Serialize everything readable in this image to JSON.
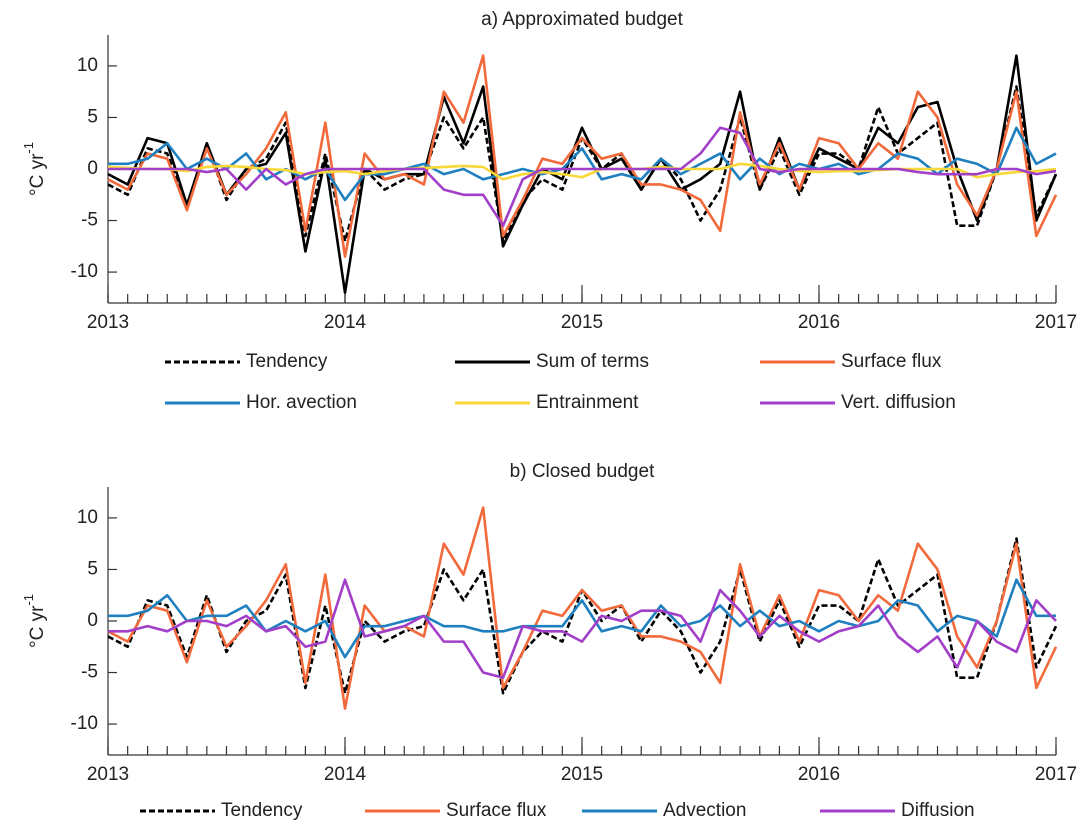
{
  "chart_data": [
    {
      "type": "line",
      "title": "a) Approximated budget",
      "y_label": "°C yr",
      "y_label_superscript": "-1",
      "x": [
        2013,
        2013.083,
        2013.167,
        2013.25,
        2013.333,
        2013.417,
        2013.5,
        2013.583,
        2013.667,
        2013.75,
        2013.833,
        2013.917,
        2014,
        2014.083,
        2014.167,
        2014.25,
        2014.333,
        2014.417,
        2014.5,
        2014.583,
        2014.667,
        2014.75,
        2014.833,
        2014.917,
        2015,
        2015.083,
        2015.167,
        2015.25,
        2015.333,
        2015.417,
        2015.5,
        2015.583,
        2015.667,
        2015.75,
        2015.833,
        2015.917,
        2016,
        2016.083,
        2016.167,
        2016.25,
        2016.333,
        2016.417,
        2016.5,
        2016.583,
        2016.667,
        2016.75,
        2016.833,
        2016.917,
        2017
      ],
      "xlim": [
        2013,
        2017
      ],
      "xticks": [
        2013,
        2014,
        2015,
        2016,
        2017
      ],
      "ylim": [
        -13,
        13
      ],
      "yticks": [
        -10,
        -5,
        0,
        5,
        10
      ],
      "legend": "below",
      "series": [
        {
          "name": "Tendency",
          "color": "#000000",
          "dashed": true,
          "values": [
            -1.5,
            -2.5,
            2,
            1.5,
            -3.5,
            2.5,
            -3,
            0,
            1,
            4.5,
            -6.5,
            1.5,
            -7,
            0,
            -2,
            -1,
            -0.5,
            5,
            2,
            5,
            -7,
            -3,
            -1,
            -2,
            3,
            0,
            1.5,
            -2,
            1,
            -1,
            -5,
            -2,
            5,
            -2,
            2,
            -2.5,
            1.5,
            1.5,
            0,
            6,
            1.5,
            3,
            4.5,
            -5.5,
            -5.5,
            0,
            8,
            -4.5,
            -0.5
          ]
        },
        {
          "name": "Sum of terms",
          "color": "#000000",
          "dashed": false,
          "values": [
            -0.5,
            -1.5,
            3,
            2.5,
            -3.5,
            2.5,
            -2.5,
            0,
            0.5,
            3.5,
            -8,
            1,
            -12,
            0,
            -1,
            -0.5,
            -0.5,
            7,
            2.5,
            8,
            -7.5,
            -3.5,
            0,
            -1,
            4,
            0,
            1,
            -2,
            1,
            -2,
            -1,
            0.5,
            7.5,
            -2,
            3,
            -2,
            2,
            1,
            0,
            4,
            2.5,
            6,
            6.5,
            0,
            -5,
            0,
            11,
            -5,
            -0.5
          ]
        },
        {
          "name": "Surface flux",
          "color": "#f26a3c",
          "dashed": false,
          "values": [
            -1,
            -2,
            1.5,
            1,
            -4,
            2,
            -2.5,
            -0.5,
            2,
            5.5,
            -6,
            4.5,
            -8.5,
            1.5,
            -1,
            -0.5,
            -1.5,
            7.5,
            4.5,
            11,
            -6.5,
            -3,
            1,
            0.5,
            3,
            1,
            1.5,
            -1.5,
            -1.5,
            -2,
            -3,
            -6,
            5.5,
            -1.5,
            2.5,
            -2,
            3,
            2.5,
            0,
            2.5,
            1,
            7.5,
            5,
            -1.5,
            -4.5,
            0,
            7.5,
            -6.5,
            -2.5
          ]
        },
        {
          "name": "Hor. avection",
          "color": "#1f80c0",
          "dashed": false,
          "values": [
            0.5,
            0.5,
            1,
            2.5,
            0,
            1,
            0,
            1.5,
            -1,
            0,
            -1,
            0,
            -3,
            -0.5,
            -0.5,
            0,
            0.5,
            -0.5,
            0,
            -1,
            -0.5,
            0,
            -0.5,
            0,
            2,
            -1,
            -0.5,
            -1,
            1,
            -0.5,
            0.5,
            1.5,
            -1,
            1,
            -0.5,
            0.5,
            0,
            0.5,
            -0.5,
            0,
            1.5,
            1,
            -0.5,
            1,
            0.5,
            -0.5,
            4,
            0.5,
            1.5
          ]
        },
        {
          "name": "Entrainment",
          "color": "#f8d838",
          "dashed": false,
          "values": [
            0.2,
            0.1,
            0,
            0,
            -0.2,
            0.2,
            0.3,
            0.2,
            0,
            -0.1,
            -0.5,
            -0.3,
            -0.2,
            -0.5,
            -0.2,
            0,
            0.1,
            0.2,
            0.3,
            0.2,
            -1,
            -0.5,
            -0.3,
            -0.5,
            -0.8,
            0,
            0,
            0,
            0.2,
            0,
            0,
            0,
            0.5,
            0.3,
            0,
            -0.2,
            -0.3,
            -0.2,
            -0.2,
            -0.1,
            0,
            0,
            0,
            0,
            -0.8,
            -0.5,
            -0.3,
            -0.2,
            0
          ]
        },
        {
          "name": "Vert. diffusion",
          "color": "#a23fc8",
          "dashed": false,
          "values": [
            0,
            0,
            0,
            0,
            0,
            -0.3,
            0,
            -2,
            0,
            -1.5,
            -0.5,
            0,
            0,
            0,
            0,
            0,
            0,
            -2,
            -2.5,
            -2.5,
            -5.5,
            -1,
            0,
            0,
            0,
            0,
            0,
            0,
            0,
            0,
            1.5,
            4,
            3.5,
            0,
            -0.3,
            0,
            0,
            0,
            0,
            0,
            0,
            -0.3,
            -0.5,
            -0.5,
            -0.5,
            0,
            0,
            -0.5,
            -0.2
          ]
        }
      ]
    },
    {
      "type": "line",
      "title": "b) Closed budget",
      "y_label": "°C yr",
      "y_label_superscript": "-1",
      "x": [
        2013,
        2013.083,
        2013.167,
        2013.25,
        2013.333,
        2013.417,
        2013.5,
        2013.583,
        2013.667,
        2013.75,
        2013.833,
        2013.917,
        2014,
        2014.083,
        2014.167,
        2014.25,
        2014.333,
        2014.417,
        2014.5,
        2014.583,
        2014.667,
        2014.75,
        2014.833,
        2014.917,
        2015,
        2015.083,
        2015.167,
        2015.25,
        2015.333,
        2015.417,
        2015.5,
        2015.583,
        2015.667,
        2015.75,
        2015.833,
        2015.917,
        2016,
        2016.083,
        2016.167,
        2016.25,
        2016.333,
        2016.417,
        2016.5,
        2016.583,
        2016.667,
        2016.75,
        2016.833,
        2016.917,
        2017
      ],
      "xlim": [
        2013,
        2017
      ],
      "xticks": [
        2013,
        2014,
        2015,
        2016,
        2017
      ],
      "ylim": [
        -13,
        13
      ],
      "yticks": [
        -10,
        -5,
        0,
        5,
        10
      ],
      "legend": "below",
      "series": [
        {
          "name": "Tendency",
          "color": "#000000",
          "dashed": true,
          "values": [
            -1.5,
            -2.5,
            2,
            1.5,
            -3.5,
            2.5,
            -3,
            0,
            1,
            4.5,
            -6.5,
            1.5,
            -7,
            0,
            -2,
            -1,
            -0.5,
            5,
            2,
            5,
            -7,
            -3,
            -1,
            -2,
            3,
            0,
            1.5,
            -2,
            1,
            -1,
            -5,
            -2,
            5,
            -2,
            2,
            -2.5,
            1.5,
            1.5,
            0,
            6,
            1.5,
            3,
            4.5,
            -5.5,
            -5.5,
            0,
            8,
            -4.5,
            -0.5
          ]
        },
        {
          "name": "Surface flux",
          "color": "#f26a3c",
          "dashed": false,
          "values": [
            -1,
            -2,
            1.5,
            1,
            -4,
            2,
            -2.5,
            -0.5,
            2,
            5.5,
            -6,
            4.5,
            -8.5,
            1.5,
            -1,
            -0.5,
            -1.5,
            7.5,
            4.5,
            11,
            -6.5,
            -3,
            1,
            0.5,
            3,
            1,
            1.5,
            -1.5,
            -1.5,
            -2,
            -3,
            -6,
            5.5,
            -1.5,
            2.5,
            -2,
            3,
            2.5,
            0,
            2.5,
            1,
            7.5,
            5,
            -1.5,
            -4.5,
            0,
            7.5,
            -6.5,
            -2.5
          ]
        },
        {
          "name": "Advection",
          "color": "#1f80c0",
          "dashed": false,
          "values": [
            0.5,
            0.5,
            1,
            2.5,
            0,
            0.5,
            0.5,
            1.5,
            -1,
            0,
            -1,
            0,
            -3.5,
            -0.5,
            -0.5,
            0,
            0.5,
            -0.5,
            -0.5,
            -1,
            -1,
            -0.5,
            -0.5,
            -0.5,
            2,
            -1,
            -0.5,
            -1,
            1.5,
            -0.5,
            0,
            1.5,
            -0.5,
            1,
            -0.5,
            0,
            -1,
            0,
            -0.5,
            0,
            2,
            1.5,
            -1,
            0.5,
            0,
            -1.5,
            4,
            0.5,
            0.5
          ]
        },
        {
          "name": "Diffusion",
          "color": "#a23fc8",
          "dashed": false,
          "values": [
            -1,
            -1,
            -0.5,
            -1,
            0,
            0,
            -0.5,
            0.5,
            -1,
            -0.5,
            -2.5,
            -2,
            4,
            -1.5,
            -1,
            -0.5,
            0.5,
            -2,
            -2,
            -5,
            -5.5,
            -0.5,
            -1,
            -1,
            -2,
            0.5,
            0,
            1,
            1,
            0.5,
            -2,
            3,
            1,
            -1.5,
            0.5,
            -1,
            -2,
            -1,
            -0.5,
            1.5,
            -1.5,
            -3,
            -1.5,
            -4.5,
            0,
            -2,
            -3,
            2,
            0
          ]
        }
      ]
    }
  ]
}
